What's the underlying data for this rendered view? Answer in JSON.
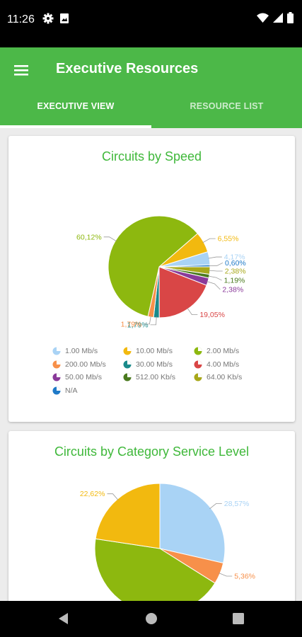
{
  "status_bar": {
    "time": "11:26"
  },
  "app_bar": {
    "title": "Executive Resources"
  },
  "tabs": [
    {
      "label": "EXECUTIVE VIEW",
      "selected": true
    },
    {
      "label": "RESOURCE LIST",
      "selected": false
    }
  ],
  "colors": {
    "primary": "#4cb848",
    "title_green": "#3fb83a",
    "light_blue": "#a9d3f5",
    "yellow": "#f2b90f",
    "olive_green": "#8db80f",
    "orange": "#f7904a",
    "teal": "#1a8a8a",
    "red": "#d94646",
    "purple": "#8a3a9a",
    "dark_green": "#4a7a1e",
    "olive": "#a8a81a",
    "blue": "#1f7ac8"
  },
  "legend": [
    {
      "label": "1.00 Mb/s",
      "color": "#a9d3f5"
    },
    {
      "label": "10.00 Mb/s",
      "color": "#f2b90f"
    },
    {
      "label": "2.00 Mb/s",
      "color": "#8db80f"
    },
    {
      "label": "200.00 Mb/s",
      "color": "#f7904a"
    },
    {
      "label": "30.00 Mb/s",
      "color": "#1a8a8a"
    },
    {
      "label": "4.00 Mb/s",
      "color": "#d94646"
    },
    {
      "label": "50.00 Mb/s",
      "color": "#8a3a9a"
    },
    {
      "label": "512.00 Kb/s",
      "color": "#4a7a1e"
    },
    {
      "label": "64.00 Kb/s",
      "color": "#a8a81a"
    },
    {
      "label": "N/A",
      "color": "#1f7ac8"
    }
  ],
  "chart_data": [
    {
      "type": "pie",
      "title": "Circuits by Speed",
      "slices": [
        {
          "name": "1.00 Mb/s",
          "value": 4.17,
          "label": "4,17%",
          "color": "#a9d3f5"
        },
        {
          "name": "N/A",
          "value": 0.6,
          "label": "0,60%",
          "color": "#1f7ac8"
        },
        {
          "name": "64.00 Kb/s",
          "value": 2.38,
          "label": "2,38%",
          "color": "#a8a81a"
        },
        {
          "name": "512.00 Kb/s",
          "value": 1.19,
          "label": "1,19%",
          "color": "#4a7a1e"
        },
        {
          "name": "50.00 Mb/s",
          "value": 2.38,
          "label": "2,38%",
          "color": "#8a3a9a"
        },
        {
          "name": "4.00 Mb/s",
          "value": 19.05,
          "label": "19,05%",
          "color": "#d94646"
        },
        {
          "name": "30.00 Mb/s",
          "value": 1.79,
          "label": "1,79%",
          "color": "#1a8a8a"
        },
        {
          "name": "200.00 Mb/s",
          "value": 1.79,
          "label": "1,79%",
          "color": "#f7904a"
        },
        {
          "name": "2.00 Mb/s",
          "value": 60.12,
          "label": "60,12%",
          "color": "#8db80f"
        },
        {
          "name": "10.00 Mb/s",
          "value": 6.55,
          "label": "6,55%",
          "color": "#f2b90f"
        }
      ]
    },
    {
      "type": "pie",
      "title": "Circuits by Category Service Level",
      "slices": [
        {
          "value": 28.57,
          "label": "28,57%",
          "color": "#a9d3f5"
        },
        {
          "value": 5.36,
          "label": "5,36%",
          "color": "#f7904a"
        },
        {
          "value": 43.45,
          "label": "",
          "color": "#8db80f"
        },
        {
          "value": 22.62,
          "label": "22,62%",
          "color": "#f2b90f"
        }
      ]
    }
  ]
}
